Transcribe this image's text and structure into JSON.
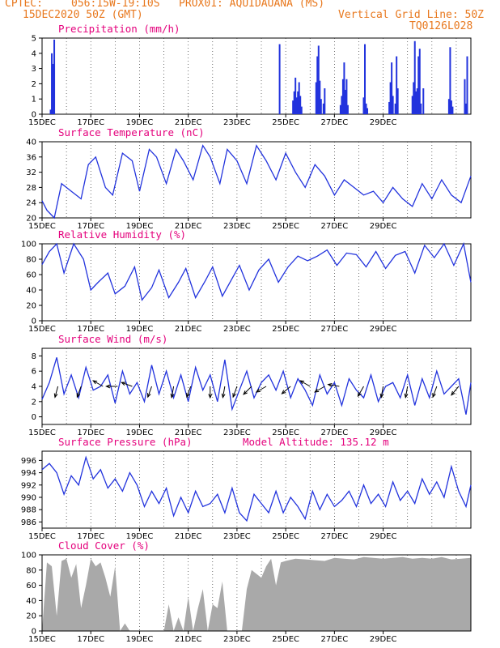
{
  "header": {
    "source": "CPTEC:",
    "location": "056:15W-19:10S   PROX01: AQUIDAUANA (MS)",
    "run": "15DEC2020 50Z (GMT)",
    "grid_note": "Vertical Grid Line: 50Z",
    "code": "TQ0126L028"
  },
  "colors": {
    "header": "#e8781e",
    "title": "#e4007c",
    "line": "#2233dd",
    "bar": "#2233dd",
    "cloud": "#a9a9a9",
    "wind_arrow": "#000000"
  },
  "x_labels": [
    "15DEC",
    "17DEC",
    "19DEC",
    "21DEC",
    "23DEC",
    "25DEC",
    "27DEC",
    "29DEC"
  ],
  "chart_data": [
    {
      "type": "bar",
      "title": "Precipitation (mm/h)",
      "x_days": [
        0.35,
        0.4,
        0.45,
        0.5,
        9.75,
        10.3,
        10.35,
        10.4,
        10.45,
        10.5,
        10.55,
        10.6,
        10.65,
        11.25,
        11.3,
        11.35,
        11.4,
        11.45,
        11.55,
        11.6,
        12.25,
        12.3,
        12.35,
        12.4,
        12.45,
        12.5,
        12.55,
        13.2,
        13.25,
        13.3,
        13.35,
        14.25,
        14.3,
        14.35,
        14.4,
        14.5,
        14.55,
        14.6,
        15.2,
        15.25,
        15.3,
        15.35,
        15.4,
        15.45,
        15.5,
        15.55,
        15.65,
        16.7,
        16.75,
        16.8,
        16.85,
        17.35,
        17.4,
        17.45
      ],
      "values": [
        0.3,
        4.0,
        3.3,
        4.9,
        4.6,
        0.9,
        1.5,
        2.4,
        1.1,
        1.5,
        2.1,
        1.2,
        0.5,
        2.1,
        3.8,
        4.5,
        2.2,
        1.0,
        0.7,
        1.7,
        0.6,
        1.2,
        2.3,
        3.4,
        1.6,
        2.3,
        0.6,
        1.1,
        4.6,
        0.7,
        0.4,
        0.8,
        2.1,
        3.4,
        1.2,
        0.7,
        3.8,
        1.7,
        1.2,
        2.1,
        4.8,
        1.5,
        1.7,
        3.8,
        4.3,
        0.7,
        1.7,
        1.0,
        4.4,
        0.9,
        0.5,
        2.3,
        0.7,
        3.8
      ],
      "xlim": [
        0,
        17.6
      ],
      "ylim": [
        0,
        5
      ],
      "yticks": [
        0,
        1,
        2,
        3,
        4,
        5
      ]
    },
    {
      "type": "line",
      "title": "Surface Temperature (nC)",
      "x_days": [
        0,
        0.2,
        0.5,
        0.8,
        1.2,
        1.6,
        1.9,
        2.2,
        2.6,
        2.9,
        3.3,
        3.7,
        4.0,
        4.4,
        4.7,
        5.1,
        5.5,
        5.8,
        6.2,
        6.6,
        6.9,
        7.3,
        7.6,
        8.0,
        8.4,
        8.8,
        9.2,
        9.6,
        10.0,
        10.4,
        10.8,
        11.2,
        11.6,
        12.0,
        12.4,
        12.8,
        13.2,
        13.6,
        14.0,
        14.4,
        14.8,
        15.2,
        15.6,
        16.0,
        16.4,
        16.8,
        17.2,
        17.6
      ],
      "values": [
        24.5,
        22,
        20,
        29,
        27,
        25,
        34,
        36,
        28,
        26,
        37,
        35,
        27,
        38,
        36,
        29,
        38,
        35,
        30,
        39,
        36,
        29,
        38,
        35,
        29,
        39,
        35,
        30,
        37,
        32,
        28,
        34,
        31,
        26,
        30,
        28,
        26,
        27,
        24,
        28,
        25,
        23,
        29,
        25,
        30,
        26,
        24,
        31
      ],
      "xlim": [
        0,
        17.6
      ],
      "ylim": [
        20,
        40
      ],
      "yticks": [
        20,
        24,
        28,
        32,
        36,
        40
      ]
    },
    {
      "type": "line",
      "title": "Relative Humidity (%)",
      "x_days": [
        0,
        0.3,
        0.6,
        0.9,
        1.3,
        1.7,
        2.0,
        2.3,
        2.7,
        3.0,
        3.4,
        3.8,
        4.1,
        4.5,
        4.8,
        5.2,
        5.6,
        5.9,
        6.3,
        6.7,
        7.0,
        7.4,
        7.8,
        8.1,
        8.5,
        8.9,
        9.3,
        9.7,
        10.1,
        10.5,
        10.9,
        11.3,
        11.7,
        12.1,
        12.5,
        12.9,
        13.3,
        13.7,
        14.1,
        14.5,
        14.9,
        15.3,
        15.7,
        16.1,
        16.5,
        16.9,
        17.3,
        17.6
      ],
      "values": [
        73,
        90,
        100,
        62,
        100,
        80,
        40,
        50,
        62,
        35,
        45,
        70,
        27,
        43,
        66,
        30,
        50,
        68,
        30,
        52,
        70,
        32,
        55,
        72,
        40,
        66,
        80,
        50,
        70,
        84,
        78,
        84,
        92,
        72,
        88,
        86,
        70,
        90,
        68,
        85,
        90,
        62,
        98,
        82,
        100,
        72,
        100,
        50
      ],
      "xlim": [
        0,
        17.6
      ],
      "ylim": [
        0,
        100
      ],
      "yticks": [
        0,
        20,
        40,
        60,
        80,
        100
      ]
    },
    {
      "type": "line",
      "title": "Surface Wind (m/s)",
      "x_days": [
        0,
        0.3,
        0.6,
        0.9,
        1.2,
        1.5,
        1.8,
        2.1,
        2.4,
        2.7,
        3.0,
        3.3,
        3.6,
        3.9,
        4.2,
        4.5,
        4.8,
        5.1,
        5.4,
        5.7,
        6.0,
        6.3,
        6.6,
        6.9,
        7.2,
        7.5,
        7.8,
        8.1,
        8.4,
        8.7,
        9.0,
        9.3,
        9.6,
        9.9,
        10.2,
        10.5,
        10.8,
        11.1,
        11.4,
        11.7,
        12.0,
        12.3,
        12.6,
        12.9,
        13.2,
        13.5,
        13.8,
        14.1,
        14.4,
        14.7,
        15.0,
        15.3,
        15.6,
        15.9,
        16.2,
        16.5,
        16.8,
        17.1,
        17.4,
        17.6
      ],
      "values": [
        2.3,
        4.5,
        7.8,
        3.0,
        5.5,
        2.5,
        6.5,
        3.5,
        4.0,
        5.5,
        1.8,
        6.0,
        3.0,
        4.5,
        2.0,
        6.8,
        3.0,
        6.0,
        2.5,
        5.5,
        2.0,
        6.5,
        3.5,
        5.5,
        2.0,
        7.5,
        1.0,
        3.5,
        6.0,
        2.5,
        4.5,
        5.5,
        3.5,
        6.0,
        2.5,
        5.0,
        3.5,
        1.5,
        5.5,
        3.0,
        4.5,
        1.5,
        5.0,
        3.5,
        2.5,
        5.5,
        2.0,
        4.0,
        4.5,
        2.5,
        5.5,
        1.5,
        5.0,
        2.5,
        6.0,
        3.0,
        4.0,
        5.0,
        0.3,
        4.5
      ],
      "arrows": [
        {
          "day": 0.65,
          "dir_deg": 195
        },
        {
          "day": 1.6,
          "dir_deg": 200
        },
        {
          "day": 2.5,
          "dir_deg": 300
        },
        {
          "day": 3.1,
          "dir_deg": 270
        },
        {
          "day": 3.7,
          "dir_deg": 290
        },
        {
          "day": 4.5,
          "dir_deg": 200
        },
        {
          "day": 5.4,
          "dir_deg": 190
        },
        {
          "day": 6.1,
          "dir_deg": 200
        },
        {
          "day": 6.9,
          "dir_deg": 180
        },
        {
          "day": 7.5,
          "dir_deg": 190
        },
        {
          "day": 8.0,
          "dir_deg": 200
        },
        {
          "day": 8.6,
          "dir_deg": 225
        },
        {
          "day": 9.2,
          "dir_deg": 240
        },
        {
          "day": 10.2,
          "dir_deg": 230
        },
        {
          "day": 11.0,
          "dir_deg": 300
        },
        {
          "day": 11.6,
          "dir_deg": 240
        },
        {
          "day": 12.2,
          "dir_deg": 280
        },
        {
          "day": 13.2,
          "dir_deg": 210
        },
        {
          "day": 14.0,
          "dir_deg": 190
        },
        {
          "day": 15.0,
          "dir_deg": 190
        },
        {
          "day": 16.2,
          "dir_deg": 200
        },
        {
          "day": 17.1,
          "dir_deg": 220
        }
      ],
      "xlim": [
        0,
        17.6
      ],
      "ylim": [
        -1,
        9
      ],
      "yticks": [
        0,
        2,
        4,
        6,
        8
      ]
    },
    {
      "type": "line",
      "title": "Surface Pressure (hPa)",
      "annotation": "Model Altitude: 135.12 m",
      "x_days": [
        0,
        0.3,
        0.6,
        0.9,
        1.2,
        1.5,
        1.8,
        2.1,
        2.4,
        2.7,
        3.0,
        3.3,
        3.6,
        3.9,
        4.2,
        4.5,
        4.8,
        5.1,
        5.4,
        5.7,
        6.0,
        6.3,
        6.6,
        6.9,
        7.2,
        7.5,
        7.8,
        8.1,
        8.4,
        8.7,
        9.0,
        9.3,
        9.6,
        9.9,
        10.2,
        10.5,
        10.8,
        11.1,
        11.4,
        11.7,
        12.0,
        12.3,
        12.6,
        12.9,
        13.2,
        13.5,
        13.8,
        14.1,
        14.4,
        14.7,
        15.0,
        15.3,
        15.6,
        15.9,
        16.2,
        16.5,
        16.8,
        17.1,
        17.4,
        17.6
      ],
      "values": [
        994.5,
        995.5,
        994,
        990.5,
        993.5,
        992,
        996.5,
        993,
        994.5,
        991.5,
        993,
        991,
        994,
        992,
        988.5,
        991,
        989,
        991.5,
        987,
        990,
        987.5,
        991,
        988.5,
        989,
        990.5,
        987.5,
        991.5,
        987.5,
        986.2,
        990.5,
        989,
        987.5,
        991,
        987.5,
        990,
        988.5,
        986.5,
        991,
        988,
        990.5,
        988.5,
        989.5,
        991,
        988.5,
        992,
        989,
        990.5,
        988.5,
        992.5,
        989.5,
        991,
        989,
        993,
        990.5,
        992.5,
        990,
        995,
        991,
        988.5,
        992
      ],
      "xlim": [
        0,
        17.6
      ],
      "ylim": [
        985,
        997.5
      ],
      "yticks": [
        986,
        988,
        990,
        992,
        994,
        996
      ]
    },
    {
      "type": "area",
      "title": "Cloud Cover (%)",
      "x_days": [
        0,
        0.2,
        0.4,
        0.6,
        0.8,
        1.0,
        1.2,
        1.4,
        1.6,
        1.8,
        2.0,
        2.2,
        2.4,
        2.6,
        2.8,
        3.0,
        3.2,
        3.4,
        3.6,
        3.8,
        4.0,
        4.2,
        4.4,
        4.6,
        4.8,
        5.0,
        5.2,
        5.4,
        5.6,
        5.8,
        6.0,
        6.2,
        6.4,
        6.6,
        6.8,
        7.0,
        7.2,
        7.4,
        7.6,
        7.8,
        8.0,
        8.2,
        8.4,
        8.6,
        8.8,
        9.0,
        9.2,
        9.4,
        9.6,
        9.8,
        10.0,
        10.4,
        10.8,
        11.2,
        11.6,
        12.0,
        12.4,
        12.8,
        13.2,
        13.6,
        14.0,
        14.4,
        14.8,
        15.2,
        15.6,
        16.0,
        16.4,
        16.8,
        17.2,
        17.6
      ],
      "values": [
        0,
        90,
        85,
        20,
        92,
        95,
        70,
        88,
        30,
        60,
        95,
        85,
        90,
        70,
        45,
        85,
        0,
        10,
        0,
        0,
        0,
        0,
        0,
        0,
        0,
        0,
        35,
        0,
        18,
        0,
        45,
        0,
        30,
        55,
        0,
        35,
        30,
        65,
        0,
        0,
        0,
        0,
        55,
        80,
        75,
        70,
        85,
        95,
        60,
        90,
        92,
        95,
        94,
        93,
        92,
        96,
        95,
        94,
        97,
        96,
        95,
        96,
        97,
        95,
        96,
        95,
        97,
        94,
        95,
        96
      ],
      "xlim": [
        0,
        17.6
      ],
      "ylim": [
        0,
        100
      ],
      "yticks": [
        0,
        20,
        40,
        60,
        80,
        100
      ]
    }
  ]
}
